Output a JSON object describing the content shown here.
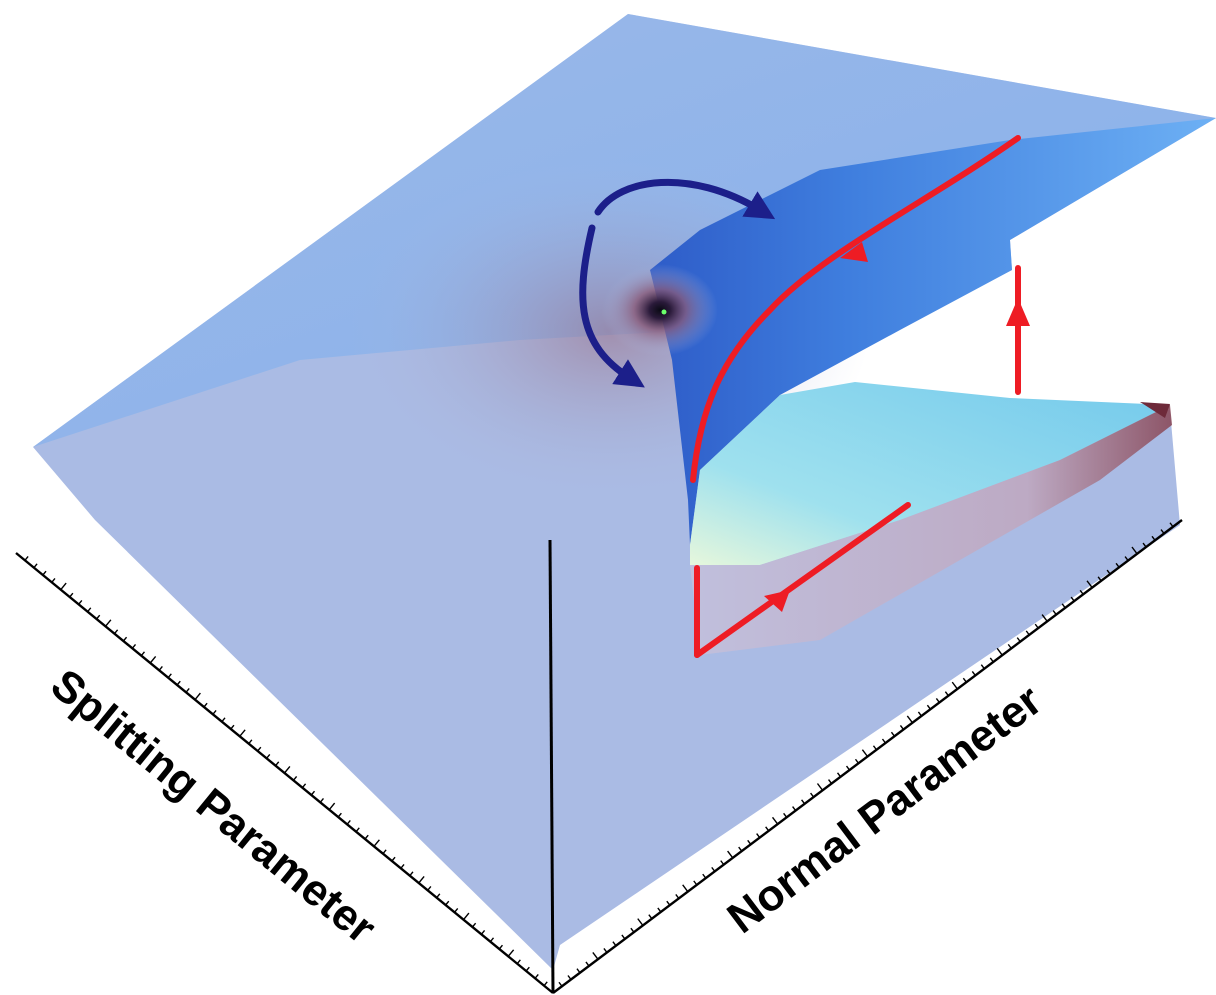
{
  "diagram": {
    "axes": {
      "left_label": "Splitting Parameter",
      "right_label": "Normal Parameter"
    },
    "colors": {
      "surface_light": "#aabbe4",
      "surface_upper_fold": "#62a6f0",
      "surface_fold_dark": "#3b6fd0",
      "lower_sheet_cyan": "#7fd6ec",
      "cusp_shadow": "#6e3a4a",
      "hysteresis_path": "#ee1c24",
      "rotation_arrows": "#1c1f8a",
      "axis": "#000000"
    },
    "elements": [
      "folded-cusp-surface",
      "hysteresis-loop",
      "rotation-arrows",
      "splitting-axis",
      "normal-axis",
      "vertical-axis"
    ]
  }
}
